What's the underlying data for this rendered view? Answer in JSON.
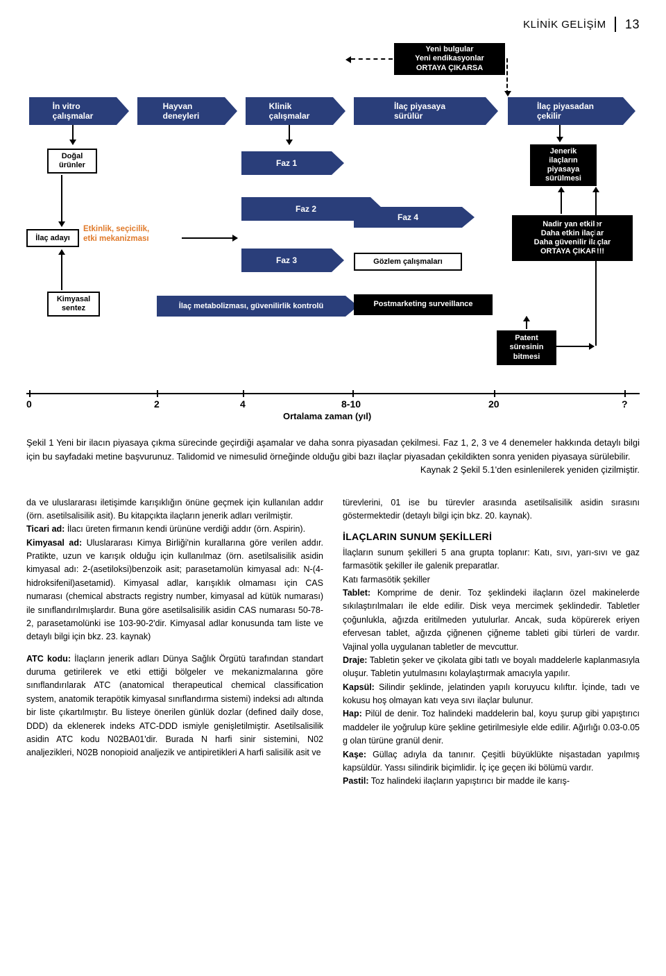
{
  "header": {
    "title": "KLİNİK GELİŞİM",
    "page": "13"
  },
  "diagram": {
    "top_bar": {
      "items": [
        "İn vitro\nçalışmalar",
        "Hayvan\ndeneyleri",
        "Klinik\nçalışmalar",
        "İlaç piyasaya\nsürülür",
        "İlaç piyasadan\nçekilir"
      ],
      "color": "#2a3e7a",
      "text_color": "#ffffff",
      "height": 40
    },
    "new_findings": "Yeni bulgular\nYeni endikasyonlar\nORTAYA ÇIKARSA",
    "left_boxes": [
      "Doğal\nürünler",
      "İlaç adayı",
      "Kimyasal\nsentez"
    ],
    "orange_text": "Etkinlik, seçicilik,\netki mekanizması",
    "orange_color": "#e07a2a",
    "phases": [
      "Faz 1",
      "Faz 2",
      "Faz 3"
    ],
    "faz4": "Faz 4",
    "gozlem": "Gözlem çalışmaları",
    "metabolism": "İlaç metabolizması, güvenilirlik kontrolü",
    "postmarketing": "Postmarketing surveillance",
    "right_boxes": {
      "generic": "Jenerik\nilaçların\npiyasaya\nsürülmesi",
      "rare": "Nadir yan etkiler\nDaha etkin ilaçlar\nDaha güvenilir ilaçlar\nORTAYA ÇIKAR!!!",
      "patent": "Patent\nsüresinin\nbitmesi"
    },
    "axis": {
      "ticks": [
        "0",
        "2",
        "4",
        "8-10",
        "20",
        "?"
      ],
      "label": "Ortalama zaman (yıl)",
      "label_fontsize": 13
    }
  },
  "caption": {
    "main": "Şekil 1 Yeni bir ilacın piyasaya çıkma sürecinde geçirdiği aşamalar ve daha sonra piyasadan çekilmesi. Faz 1, 2, 3 ve 4 denemeler hakkında detaylı bilgi için bu sayfadaki metine başvurunuz. Talidomid ve nimesulid örneğinde olduğu gibi bazı ilaçlar piyasadan çekildikten sonra yeniden piyasaya sürülebilir.",
    "right": "Kaynak 2 Şekil 5.1'den esinlenilerek yeniden çizilmiştir."
  },
  "columns": {
    "left": {
      "p1": "da ve uluslararası iletişimde karışıklığın önüne geçmek için kullanılan addır (örn. asetilsalisilik asit). Bu kitapçıkta ilaçların jenerik adları verilmiştir.",
      "p2_label": "Ticari ad:",
      "p2_text": " İlacı üreten firmanın kendi ürününe verdiği addır (örn. Aspirin).",
      "p3_label": "Kimyasal ad:",
      "p3_text": " Uluslararası Kimya Birliği'nin kurallarına göre verilen addır. Pratikte, uzun ve karışık olduğu için kullanılmaz (örn. asetilsalisilik asidin kimyasal adı: 2-(asetiloksi)benzoik asit; parasetamolün kimyasal adı: N-(4-hidroksifenil)asetamid). Kimyasal adlar, karışıklık olmaması için CAS numarası (chemical abstracts registry number, kimyasal ad kütük numarası) ile sınıflandırılmışlardır. Buna göre asetilsalisilik asidin CAS numarası 50-78-2, parasetamolünki ise 103-90-2'dir. Kimyasal adlar konusunda tam liste ve detaylı bilgi için bkz. 23. kaynak)",
      "p4_label": "ATC kodu:",
      "p4_text": " İlaçların jenerik adları Dünya Sağlık Örgütü tarafından standart duruma getirilerek ve etki ettiği bölgeler ve mekanizmalarına göre sınıflandırılarak ATC (anatomical therapeutical chemical classification system, anatomik terapötik kimyasal sınıflandırma sistemi) indeksi adı altında bir liste çıkartılmıştır. Bu listeye önerilen günlük dozlar (defined daily dose, DDD) da eklenerek indeks ATC-DDD ismiyle genişletilmiştir. Asetilsalisilik asidin ATC kodu N02BA01'dir. Burada N harfi sinir sistemini, N02 analjezikleri, N02B nonopioid analjezik ve antipiretikleri A harfi salisilik asit ve"
    },
    "right": {
      "p1": "türevlerini, 01 ise bu türevler arasında asetilsalisilik asidin sırasını göstermektedir (detaylı bilgi için bkz. 20. kaynak).",
      "h3": "İLAÇLARIN SUNUM ŞEKİLLERİ",
      "p2": "İlaçların sunum şekilleri 5 ana grupta toplanır: Katı, sıvı, yarı-sıvı ve gaz farmasötik şekiller ile galenik preparatlar.",
      "p3": "Katı farmasötik şekiller",
      "tablet_l": "Tablet:",
      "tablet": " Komprime de denir. Toz şeklindeki ilaçların özel makinelerde sıkılaştırılmaları ile elde edilir. Disk veya mercimek şeklindedir. Tabletler çoğunlukla, ağızda eritilmeden yutulurlar. Ancak, suda köpürerek eriyen efervesan tablet, ağızda çiğnenen çiğneme tableti gibi türleri de vardır. Vajinal yolla uygulanan tabletler de mevcuttur.",
      "draje_l": "Draje:",
      "draje": " Tabletin şeker ve çikolata gibi tatlı ve boyalı maddelerle kaplanmasıyla oluşur. Tabletin yutulmasını kolaylaştırmak amacıyla yapılır.",
      "kapsul_l": "Kapsül:",
      "kapsul": " Silindir şeklinde, jelatinden yapılı koruyucu kılıftır. İçinde, tadı ve kokusu hoş olmayan katı veya sıvı ilaçlar bulunur.",
      "hap_l": "Hap:",
      "hap": " Pilül de denir. Toz halindeki maddelerin bal, koyu şurup gibi yapıştırıcı maddeler ile yoğrulup küre şekline getirilmesiyle elde edilir. Ağırlığı 0.03-0.05 g olan türüne granül denir.",
      "kase_l": "Kaşe:",
      "kase": " Güllaç adıyla da tanınır. Çeşitli büyüklükte nişastadan yapılmış kapsüldür. Yassı silindirik biçimlidir. İç içe geçen iki bölümü vardır.",
      "pastil_l": "Pastil:",
      "pastil": " Toz halindeki ilaçların yapıştırıcı bir madde ile karış-"
    }
  }
}
